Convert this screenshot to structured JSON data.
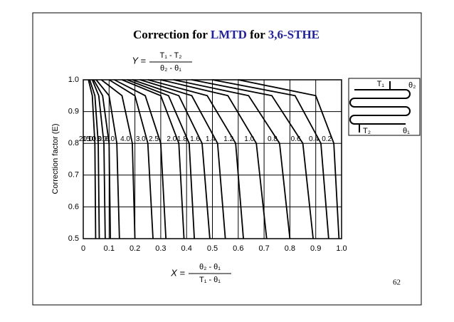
{
  "chart_data": {
    "type": "line",
    "title_parts": [
      "Correction for ",
      "LMTD",
      " for ",
      "3,6-STHE"
    ],
    "ylabel": "Correction factor (E)",
    "y_formula": {
      "lhs": "Y =",
      "numerator": "T₁ - T₂",
      "denominator": "θ₂ - θ₁"
    },
    "x_formula": {
      "lhs": "X =",
      "numerator": "θ₂ - θ₁",
      "denominator": "T₁ - θ₁"
    },
    "inset_labels": [
      "T₁",
      "θ₂",
      "T₂",
      "θ₁"
    ],
    "page_number": "62",
    "color": "#000000",
    "grid": true,
    "xlim": [
      0,
      1
    ],
    "ylim": [
      0.5,
      1
    ],
    "xticks": [
      0,
      0.1,
      0.2,
      0.3,
      0.4,
      0.5,
      0.6,
      0.7,
      0.8,
      0.9,
      {
        "value": 1,
        "label": "1.0"
      }
    ],
    "yticks": [
      0.5,
      0.6,
      0.7,
      0.8,
      0.9,
      {
        "value": 1,
        "label": "1.0"
      }
    ],
    "series": [
      {
        "name": "20.0",
        "x": [
          0.02,
          0.035,
          0.045,
          0.048
        ],
        "values": [
          1,
          0.95,
          0.8,
          0.5
        ]
      },
      {
        "name": "15.0",
        "x": [
          0.025,
          0.045,
          0.058,
          0.062
        ],
        "values": [
          1,
          0.95,
          0.8,
          0.5
        ]
      },
      {
        "name": "10.0",
        "x": [
          0.035,
          0.06,
          0.08,
          0.085
        ],
        "values": [
          1,
          0.95,
          0.8,
          0.5
        ]
      },
      {
        "name": "8.0",
        "x": [
          0.04,
          0.075,
          0.1,
          0.105
        ],
        "values": [
          1,
          0.95,
          0.8,
          0.5
        ]
      },
      {
        "name": "6.0",
        "x": [
          0.05,
          0.1,
          0.13,
          0.14
        ],
        "values": [
          1,
          0.95,
          0.8,
          0.5
        ]
      },
      {
        "name": "4.0",
        "x": [
          0.07,
          0.15,
          0.19,
          0.2
        ],
        "values": [
          1,
          0.95,
          0.8,
          0.5
        ]
      },
      {
        "name": "3.0",
        "x": [
          0.1,
          0.2,
          0.25,
          0.27
        ],
        "values": [
          1,
          0.95,
          0.8,
          0.5
        ]
      },
      {
        "name": "2.5",
        "x": [
          0.12,
          0.24,
          0.3,
          0.32
        ],
        "values": [
          1,
          0.95,
          0.8,
          0.5
        ]
      },
      {
        "name": "2.0",
        "x": [
          0.15,
          0.3,
          0.37,
          0.39
        ],
        "values": [
          1,
          0.95,
          0.8,
          0.5
        ]
      },
      {
        "name": "1.8",
        "x": [
          0.17,
          0.33,
          0.41,
          0.43
        ],
        "values": [
          1,
          0.95,
          0.8,
          0.5
        ]
      },
      {
        "name": "1.6",
        "x": [
          0.19,
          0.37,
          0.46,
          0.49
        ],
        "values": [
          1,
          0.95,
          0.8,
          0.5
        ]
      },
      {
        "name": "1.4",
        "x": [
          0.22,
          0.42,
          0.52,
          0.55
        ],
        "values": [
          1,
          0.95,
          0.8,
          0.5
        ]
      },
      {
        "name": "1.2",
        "x": [
          0.25,
          0.48,
          0.59,
          0.62
        ],
        "values": [
          1,
          0.95,
          0.8,
          0.5
        ]
      },
      {
        "name": "1.0",
        "x": [
          0.3,
          0.56,
          0.67,
          0.71
        ],
        "values": [
          1,
          0.95,
          0.8,
          0.5
        ]
      },
      {
        "name": "0.8",
        "x": [
          0.35,
          0.64,
          0.76,
          0.8
        ],
        "values": [
          1,
          0.95,
          0.8,
          0.5
        ]
      },
      {
        "name": "0.6",
        "x": [
          0.42,
          0.73,
          0.85,
          0.89
        ],
        "values": [
          1,
          0.95,
          0.8,
          0.5
        ]
      },
      {
        "name": "0.4",
        "x": [
          0.5,
          0.82,
          0.92,
          0.95
        ],
        "values": [
          1,
          0.95,
          0.8,
          0.5
        ]
      },
      {
        "name": "0.2",
        "x": [
          0.6,
          0.9,
          0.97,
          0.99
        ],
        "values": [
          1,
          0.95,
          0.8,
          0.5
        ]
      }
    ]
  }
}
